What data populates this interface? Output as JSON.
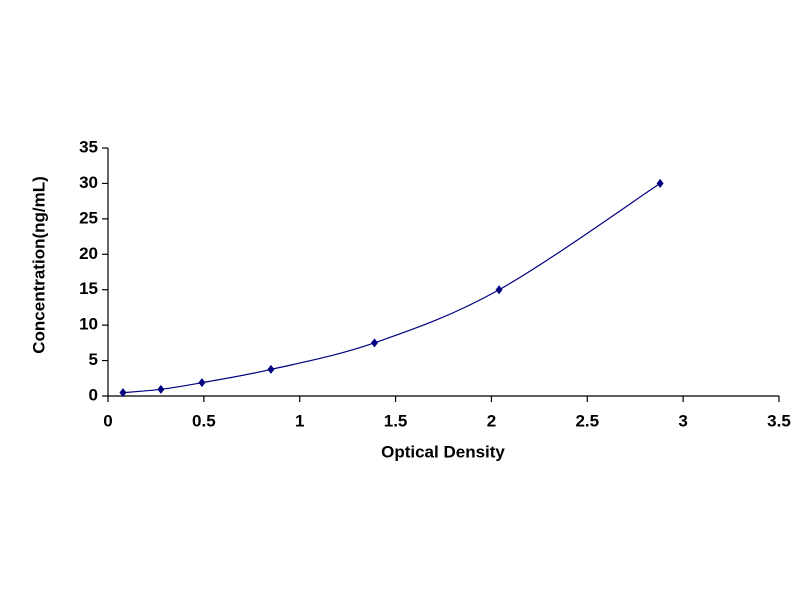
{
  "chart_data": {
    "type": "scatter",
    "x_label": "Optical Density",
    "y_label": "Concentration(ng/mL)",
    "x": [
      0.078,
      0.276,
      0.49,
      0.85,
      1.39,
      2.04,
      2.88
    ],
    "values": [
      0.47,
      0.94,
      1.88,
      3.75,
      7.5,
      15,
      30
    ],
    "color": "#000080",
    "curve": true,
    "xlim": [
      0,
      3.5
    ],
    "xticks": [
      0,
      0.5,
      1,
      1.5,
      2,
      2.5,
      3,
      3.5
    ],
    "ylim": [
      0,
      35
    ],
    "yticks": [
      0,
      5,
      10,
      15,
      20,
      25,
      30,
      35
    ],
    "grid": false
  }
}
